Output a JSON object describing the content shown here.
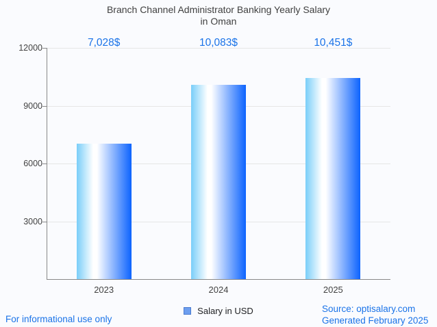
{
  "chart_data": {
    "type": "bar",
    "title": "Branch Channel Administrator Banking Yearly Salary in Oman",
    "title_lines": [
      "Branch Channel Administrator Banking Yearly Salary",
      "in Oman"
    ],
    "categories": [
      "2023",
      "2024",
      "2025"
    ],
    "series": [
      {
        "name": "Salary in USD",
        "values": [
          7028,
          10083,
          10451
        ],
        "value_labels": [
          "7,028$",
          "10,083$",
          "10,451$"
        ]
      }
    ],
    "xlabel": "",
    "ylabel": "",
    "ylim": [
      0,
      12000
    ],
    "yticks": [
      3000,
      6000,
      9000,
      12000
    ],
    "grid": true,
    "legend_position": "bottom",
    "bar_gradient": [
      "#79cef9",
      "#ffffff",
      "#0c63fe"
    ]
  },
  "legend": {
    "label": "Salary in USD",
    "swatch_icon": "blue-square-icon"
  },
  "footer": {
    "disclaimer": "For informational use only",
    "source": "Source: optisalary.com",
    "generated": "Generated February 2025"
  },
  "colors": {
    "background": "#fafbfe",
    "accent": "#1a73e8",
    "title_text": "#3f3f3f",
    "axis_text": "#424242",
    "gridline": "#e6e6e6",
    "axis_line": "#888888",
    "legend_swatch_fill": "#6d9eef",
    "legend_swatch_border": "#4a7bd0"
  }
}
